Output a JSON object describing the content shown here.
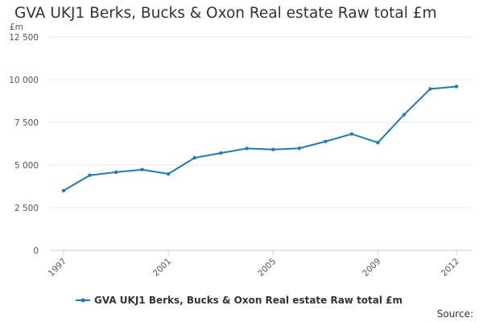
{
  "chart_data": {
    "type": "line",
    "title": "GVA UKJ1 Berks, Bucks & Oxon Real estate Raw total £m",
    "ylabel": "£m",
    "xlabel": "",
    "ylim": [
      0,
      12500
    ],
    "yticks": [
      0,
      2500,
      5000,
      7500,
      10000,
      12500
    ],
    "ytick_labels": [
      "0",
      "2 500",
      "5 000",
      "7 500",
      "10 000",
      "12 500"
    ],
    "xlim": [
      1997,
      2012
    ],
    "xticks": [
      1997,
      2001,
      2005,
      2009,
      2012
    ],
    "xtick_labels": [
      "1997",
      "2001",
      "2005",
      "2009",
      "2012"
    ],
    "x": [
      1997,
      1998,
      1999,
      2000,
      2001,
      2002,
      2003,
      2004,
      2005,
      2006,
      2007,
      2008,
      2009,
      2010,
      2011,
      2012
    ],
    "series": [
      {
        "name": "GVA UKJ1 Berks, Bucks & Oxon Real estate Raw total £m",
        "color": "#1f7ab5",
        "values": [
          3500,
          4400,
          4580,
          4730,
          4480,
          5420,
          5700,
          5970,
          5910,
          5980,
          6380,
          6820,
          6310,
          7950,
          9460,
          9600
        ]
      }
    ],
    "grid": true,
    "legend_position": "bottom",
    "source_label": "Source:"
  }
}
